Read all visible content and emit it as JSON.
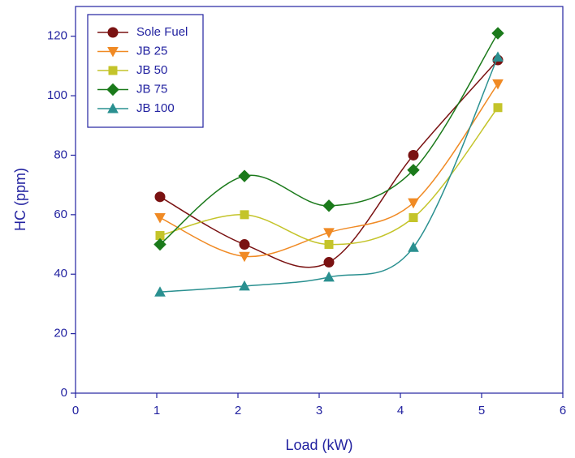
{
  "chart_data": {
    "type": "line",
    "smooth": true,
    "x_label": "Load (kW)",
    "y_label": "HC (ppm)",
    "x": [
      1.04,
      2.08,
      3.12,
      4.16,
      5.2
    ],
    "xlim": [
      0,
      6
    ],
    "xticks": [
      0,
      1,
      2,
      3,
      4,
      5,
      6
    ],
    "ylim": [
      0,
      130
    ],
    "yticks": [
      0,
      20,
      40,
      60,
      80,
      100,
      120
    ],
    "grid": false,
    "legend": "upper left",
    "series": [
      {
        "name": "Sole Fuel",
        "color": "#7a1212",
        "marker": "circle",
        "values": [
          66,
          50,
          44,
          80,
          112
        ]
      },
      {
        "name": "JB 25",
        "color": "#f08a24",
        "marker": "triangle-down",
        "values": [
          59,
          46,
          54,
          64,
          104
        ]
      },
      {
        "name": "JB 50",
        "color": "#c4c42a",
        "marker": "square",
        "values": [
          53,
          60,
          50,
          59,
          96
        ]
      },
      {
        "name": "JB 75",
        "color": "#1b7a1b",
        "marker": "diamond",
        "values": [
          50,
          73,
          63,
          75,
          121
        ]
      },
      {
        "name": "JB 100",
        "color": "#2a9090",
        "marker": "triangle-up",
        "values": [
          34,
          36,
          39,
          49,
          113
        ]
      }
    ]
  }
}
